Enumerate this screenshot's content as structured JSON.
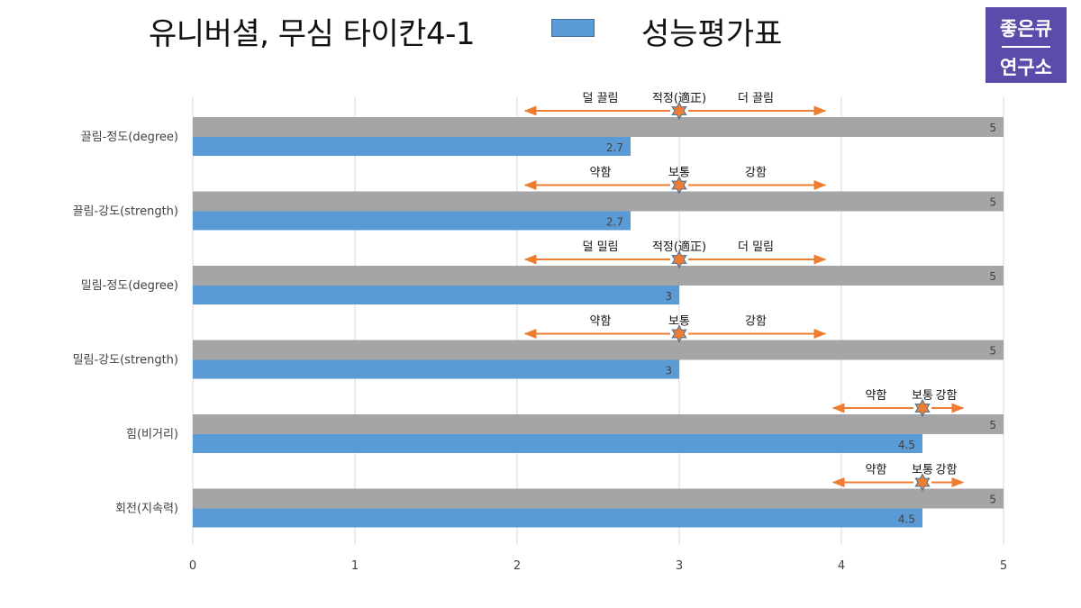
{
  "header": {
    "title": "유니버셜, 무심 타이칸4-1",
    "legend_label": "성능평가표",
    "logo_line1": "좋은큐",
    "logo_line2": "연구소"
  },
  "colors": {
    "series_fill": "#5b9bd5",
    "scale_fill": "#a5a5a5",
    "arrow": "#ed7d31",
    "grid": "#d9d9d9",
    "logo_bg": "#5b4bab"
  },
  "chart_data": {
    "type": "bar",
    "orientation": "horizontal",
    "categories": [
      "끌림-정도(degree)",
      "끌림-강도(strength)",
      "밀림-정도(degree)",
      "밀림-강도(strength)",
      "힘(비거리)",
      "회전(지속력)"
    ],
    "series": [
      {
        "name": "",
        "values": [
          5,
          5,
          5,
          5,
          5,
          5
        ],
        "role": "scale-max"
      },
      {
        "name": "성능평가표",
        "values": [
          2.7,
          2.7,
          3,
          3,
          4.5,
          4.5
        ]
      }
    ],
    "data_labels": [
      [
        "5",
        "2.7"
      ],
      [
        "5",
        "2.7"
      ],
      [
        "5",
        "3"
      ],
      [
        "5",
        "3"
      ],
      [
        "5",
        "4.5"
      ],
      [
        "5",
        "4.5"
      ]
    ],
    "xlim": [
      0,
      5
    ],
    "xticks": [
      "0",
      "1",
      "2",
      "3",
      "4",
      "5"
    ],
    "grid": "vertical",
    "annotations": [
      {
        "left": "덜 끌림",
        "mid": "적정(適正)",
        "right": "더 끌림",
        "center": 3,
        "from": 2.05,
        "to": 3.9
      },
      {
        "left": "약함",
        "mid": "보통",
        "right": "강함",
        "center": 3,
        "from": 2.05,
        "to": 3.9
      },
      {
        "left": "덜 밀림",
        "mid": "적정(適正)",
        "right": "더 밀림",
        "center": 3,
        "from": 2.05,
        "to": 3.9
      },
      {
        "left": "약함",
        "mid": "보통",
        "right": "강함",
        "center": 3,
        "from": 2.05,
        "to": 3.9
      },
      {
        "left": "약함",
        "mid": "보통",
        "right": "강함",
        "center": 4.5,
        "from": 3.95,
        "to": 4.75
      },
      {
        "left": "약함",
        "mid": "보통",
        "right": "강함",
        "center": 4.5,
        "from": 3.95,
        "to": 4.75
      }
    ]
  }
}
